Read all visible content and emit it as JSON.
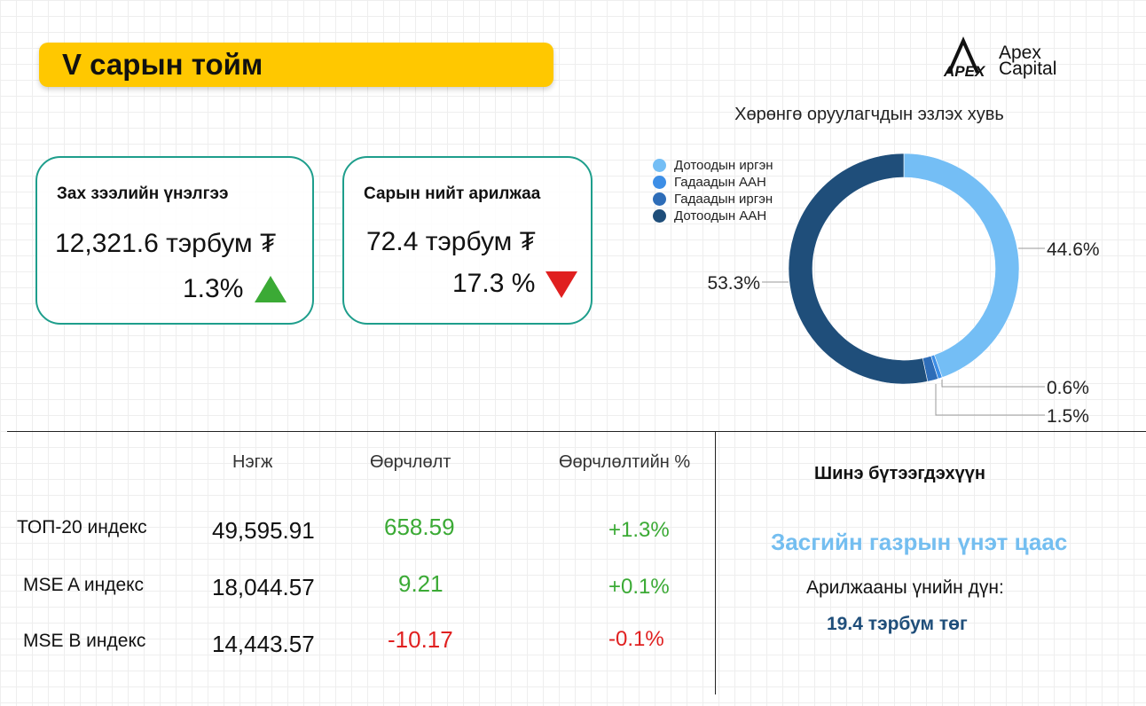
{
  "header": {
    "title": "V сарын тойм"
  },
  "logo": {
    "line1": "Apex",
    "line2": "Capital",
    "mark": "APEX"
  },
  "cards": [
    {
      "title": "Зах зээлийн үнэлгээ",
      "value": "12,321.6 тэрбум ₮",
      "change": "1.3%",
      "direction": "up"
    },
    {
      "title": "Сарын нийт арилжаа",
      "value": "72.4 тэрбум ₮",
      "change": "17.3 %",
      "direction": "down"
    }
  ],
  "chart_data": {
    "type": "pie",
    "title": "Хөрөнгө оруулагчдын эзлэх хувь",
    "categories": [
      "Дотоодын иргэн",
      "Гадаадын ААН",
      "Гадаадын иргэн",
      "Дотоодын ААН"
    ],
    "values": [
      44.6,
      0.6,
      1.5,
      53.3
    ],
    "value_labels": [
      "44.6%",
      "0.6%",
      "1.5%",
      "53.3%"
    ],
    "colors": [
      "#74BEF5",
      "#3D8EE6",
      "#2E6DB8",
      "#1F4E7A"
    ],
    "donut": true,
    "legend": "top-left"
  },
  "indices": {
    "headers": {
      "unit": "Нэгж",
      "change": "Өөрчлөлт",
      "change_pct": "Өөрчлөлтийн %"
    },
    "rows": [
      {
        "name": "ТОП-20 индекс",
        "value": "49,595.91",
        "change": "658.59",
        "pct": "+1.3%",
        "trend": "positive"
      },
      {
        "name": "MSE A индекс",
        "value": "18,044.57",
        "change": "9.21",
        "pct": "+0.1%",
        "trend": "positive"
      },
      {
        "name": "MSE B индекс",
        "value": "14,443.57",
        "change": "-10.17",
        "pct": "-0.1%",
        "trend": "negative"
      }
    ]
  },
  "new_product": {
    "title": "Шинэ бүтээгдэхүүн",
    "name": "Засгийн газрын үнэт цаас",
    "trade_label": "Арилжааны үнийн дүн:",
    "trade_value": "19.4 тэрбум төг"
  },
  "colors": {
    "up": "#3BAA35",
    "down": "#E02020",
    "accent": "#FFC800",
    "card_border": "#1E9E8C"
  }
}
